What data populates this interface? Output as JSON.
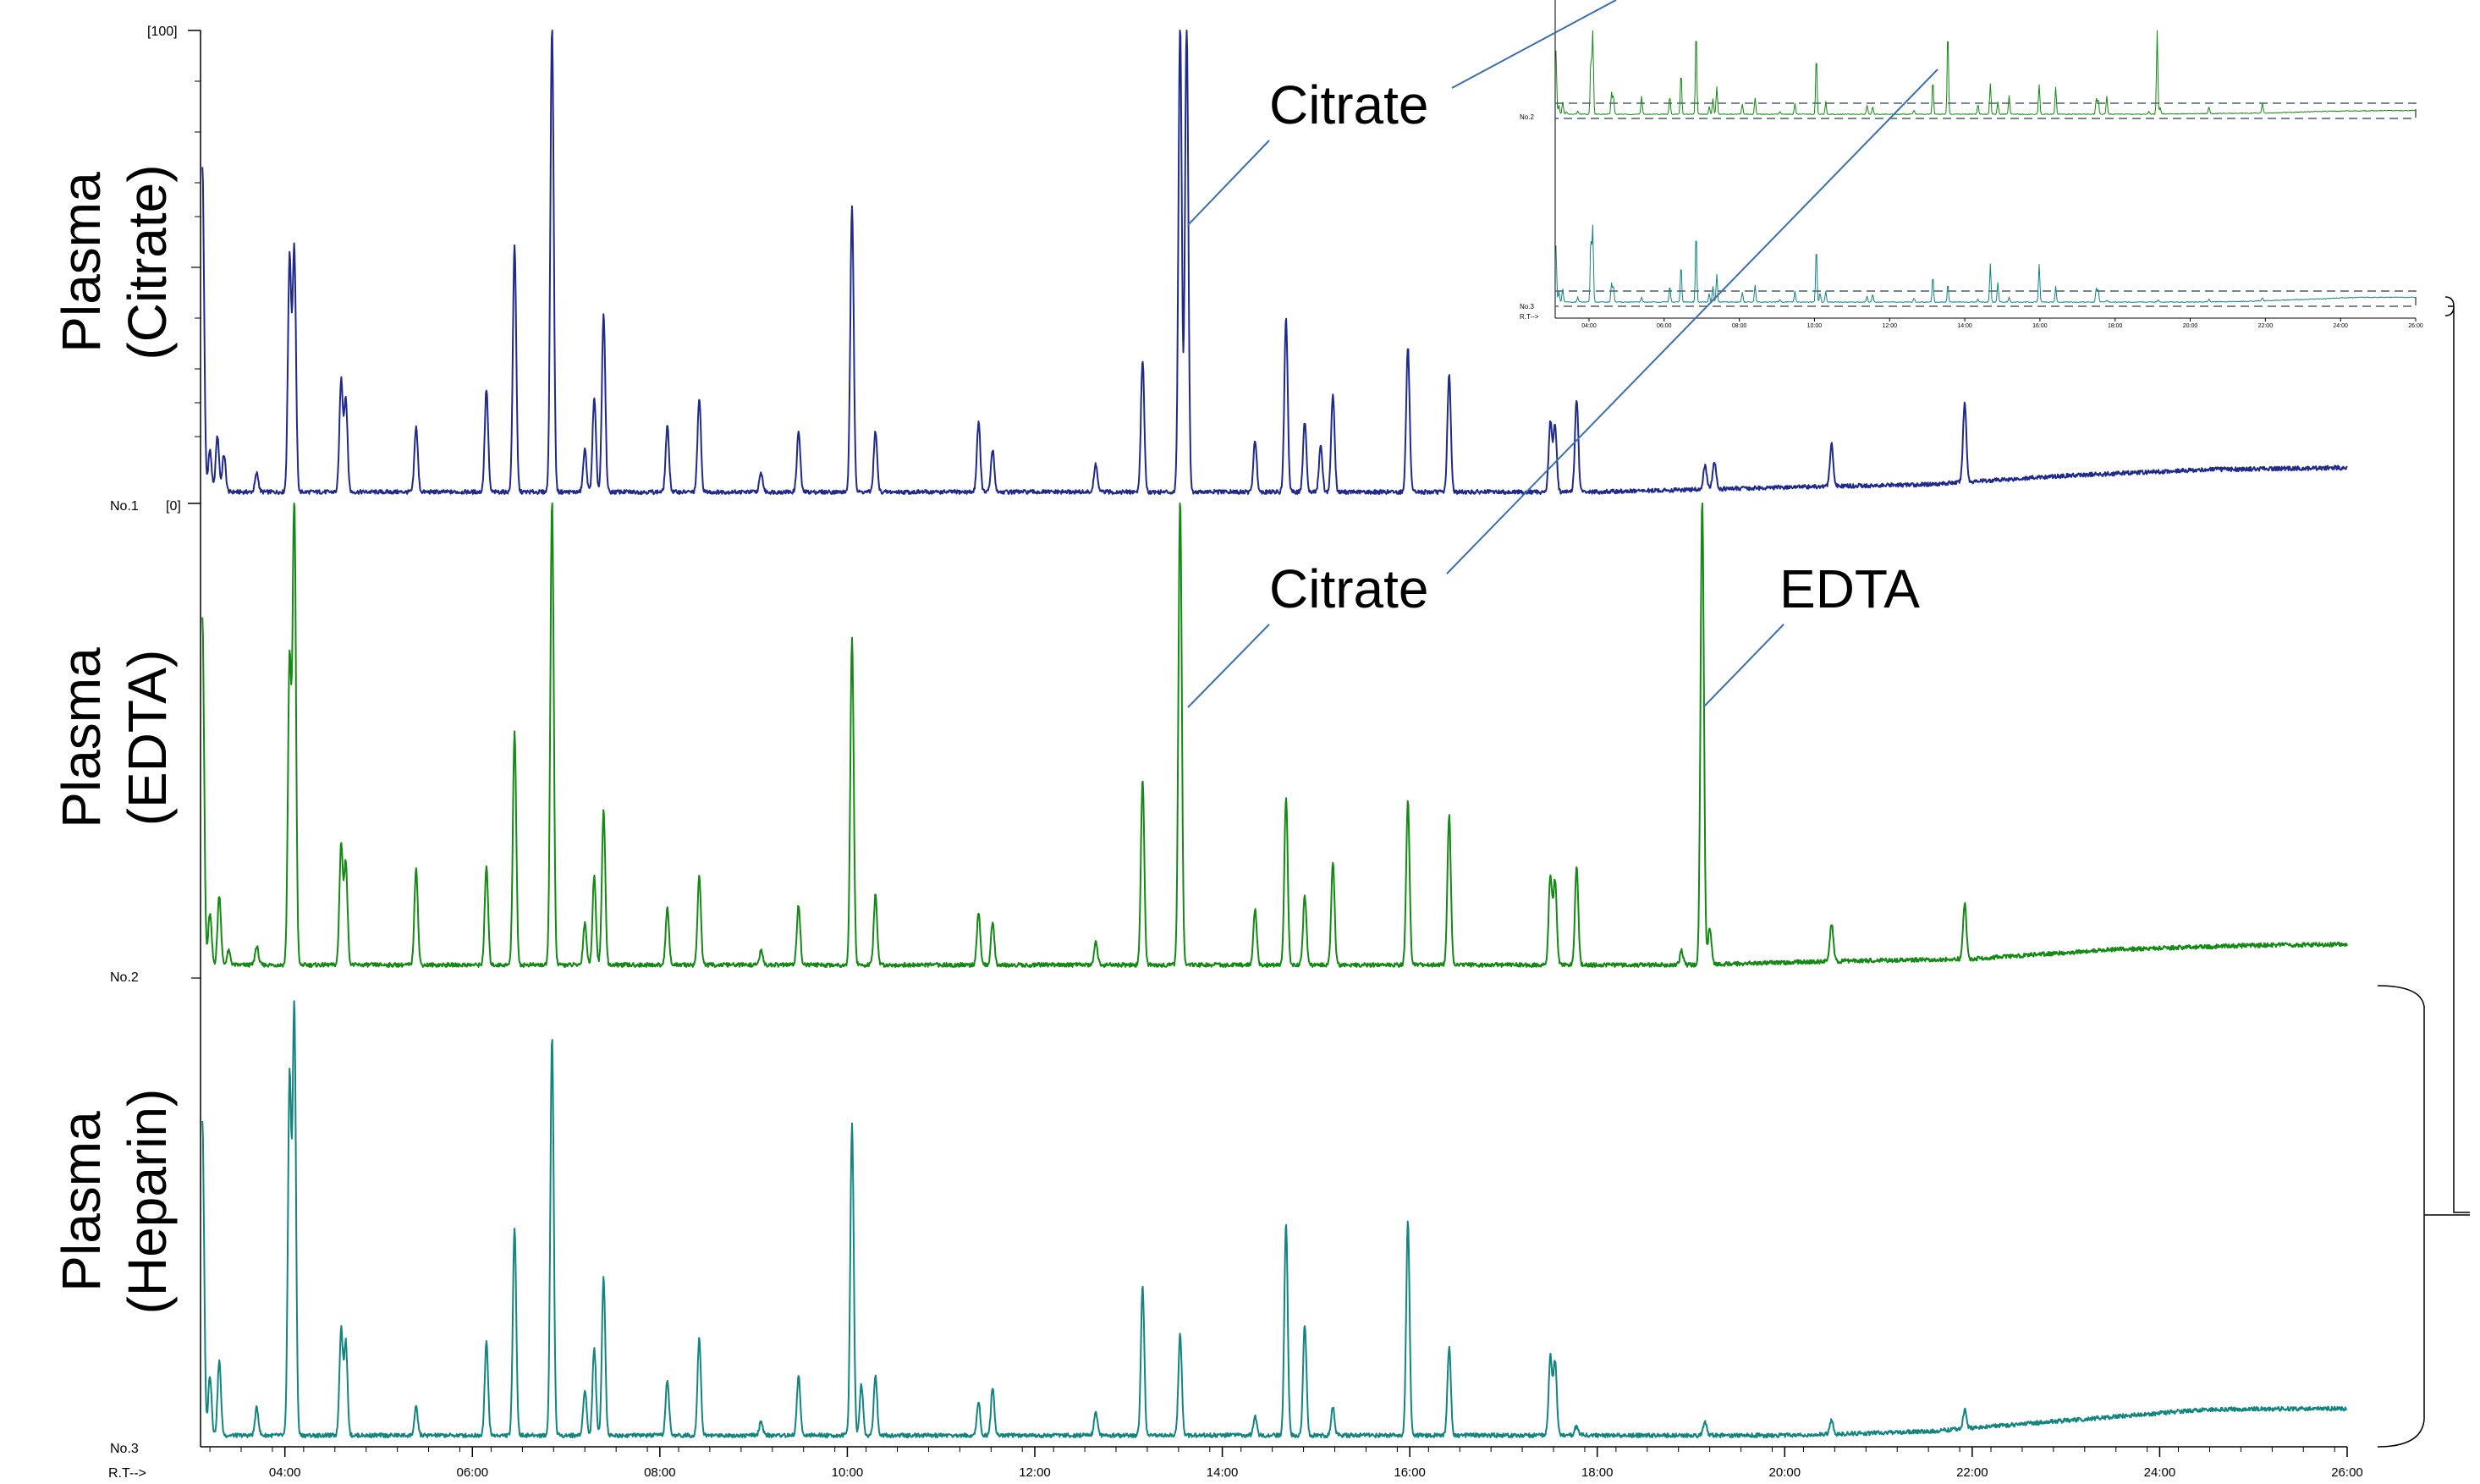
{
  "chart_data": {
    "type": "line",
    "x_label": "R.T-->",
    "x_ticks": [
      "04:00",
      "06:00",
      "08:00",
      "10:00",
      "12:00",
      "14:00",
      "16:00",
      "18:00",
      "20:00",
      "22:00",
      "24:00",
      "26:00"
    ],
    "x_range_min": [
      3.1,
      26.0
    ],
    "y_tick_top": "[100]",
    "y_tick_bottom": "[0]",
    "series": [
      {
        "id": "no1",
        "trace_label": "No.1",
        "title_line1": "Plasma",
        "title_line2": "(Citrate)",
        "color": "#1f2a8c",
        "baseline": 1.5,
        "drift": [
          [
            3.1,
            1.0
          ],
          [
            18,
            1.0
          ],
          [
            20,
            2.0
          ],
          [
            21.5,
            2.6
          ],
          [
            23,
            4.5
          ],
          [
            24.5,
            5.8
          ],
          [
            26,
            6.2
          ]
        ],
        "peaks": [
          [
            3.12,
            70
          ],
          [
            3.2,
            9
          ],
          [
            3.28,
            12
          ],
          [
            3.35,
            8
          ],
          [
            3.7,
            4
          ],
          [
            4.05,
            50
          ],
          [
            4.1,
            52
          ],
          [
            4.6,
            24
          ],
          [
            4.65,
            20
          ],
          [
            5.4,
            14
          ],
          [
            6.15,
            22
          ],
          [
            6.45,
            53
          ],
          [
            6.85,
            100
          ],
          [
            7.2,
            9
          ],
          [
            7.3,
            20
          ],
          [
            7.4,
            38
          ],
          [
            8.08,
            14
          ],
          [
            8.42,
            20
          ],
          [
            9.08,
            4
          ],
          [
            9.48,
            13
          ],
          [
            10.05,
            61
          ],
          [
            10.3,
            13
          ],
          [
            11.4,
            15
          ],
          [
            11.55,
            9
          ],
          [
            12.65,
            6
          ],
          [
            13.15,
            28
          ],
          [
            13.55,
            100
          ],
          [
            13.62,
            100
          ],
          [
            14.35,
            11
          ],
          [
            14.68,
            37
          ],
          [
            14.88,
            15
          ],
          [
            15.05,
            10
          ],
          [
            15.18,
            21
          ],
          [
            15.98,
            31
          ],
          [
            16.42,
            25
          ],
          [
            17.5,
            15
          ],
          [
            17.55,
            14
          ],
          [
            17.78,
            20
          ],
          [
            19.15,
            5
          ],
          [
            19.25,
            6
          ],
          [
            20.5,
            9
          ],
          [
            21.92,
            17
          ]
        ]
      },
      {
        "id": "no2",
        "trace_label": "No.2",
        "title_line1": "Plasma",
        "title_line2": "(EDTA)",
        "color": "#138a13",
        "baseline": 1.5,
        "drift": [
          [
            3.1,
            1.0
          ],
          [
            19,
            1.0
          ],
          [
            20.5,
            1.8
          ],
          [
            22,
            2.3
          ],
          [
            23.5,
            4.3
          ],
          [
            25,
            5.2
          ],
          [
            26,
            5.4
          ]
        ],
        "peaks": [
          [
            3.12,
            75
          ],
          [
            3.2,
            11
          ],
          [
            3.3,
            15
          ],
          [
            3.4,
            3
          ],
          [
            3.7,
            4
          ],
          [
            4.05,
            65
          ],
          [
            4.1,
            100
          ],
          [
            4.6,
            26
          ],
          [
            4.65,
            22
          ],
          [
            5.4,
            21
          ],
          [
            6.15,
            21
          ],
          [
            6.45,
            50
          ],
          [
            6.85,
            100
          ],
          [
            7.2,
            9
          ],
          [
            7.3,
            19
          ],
          [
            7.4,
            33
          ],
          [
            8.08,
            12
          ],
          [
            8.42,
            19
          ],
          [
            9.08,
            3
          ],
          [
            9.48,
            13
          ],
          [
            10.05,
            70
          ],
          [
            10.3,
            15
          ],
          [
            11.4,
            11
          ],
          [
            11.55,
            9
          ],
          [
            12.65,
            5
          ],
          [
            13.15,
            40
          ],
          [
            13.55,
            100
          ],
          [
            14.35,
            12
          ],
          [
            14.68,
            36
          ],
          [
            14.88,
            15
          ],
          [
            15.18,
            22
          ],
          [
            15.98,
            35
          ],
          [
            16.42,
            32
          ],
          [
            17.5,
            19
          ],
          [
            17.55,
            18
          ],
          [
            17.78,
            21
          ],
          [
            18.9,
            3
          ],
          [
            19.12,
            100
          ],
          [
            19.2,
            8
          ],
          [
            20.5,
            8
          ],
          [
            21.92,
            12
          ]
        ]
      },
      {
        "id": "no3",
        "trace_label": "No.3",
        "title_line1": "Plasma",
        "title_line2": "(Heparin)",
        "color": "#13857f",
        "baseline": 1.0,
        "drift": [
          [
            3.1,
            1.0
          ],
          [
            20,
            1.0
          ],
          [
            21.5,
            1.8
          ],
          [
            23,
            4.2
          ],
          [
            24.5,
            6.6
          ],
          [
            26,
            6.8
          ]
        ],
        "peaks": [
          [
            3.12,
            68
          ],
          [
            3.2,
            13
          ],
          [
            3.3,
            16
          ],
          [
            3.7,
            6
          ],
          [
            4.05,
            77
          ],
          [
            4.1,
            92
          ],
          [
            4.6,
            23
          ],
          [
            4.65,
            20
          ],
          [
            5.4,
            6
          ],
          [
            6.15,
            20
          ],
          [
            6.45,
            45
          ],
          [
            6.85,
            86
          ],
          [
            7.2,
            10
          ],
          [
            7.3,
            19
          ],
          [
            7.4,
            34
          ],
          [
            8.08,
            12
          ],
          [
            8.42,
            21
          ],
          [
            9.08,
            3
          ],
          [
            9.48,
            13
          ],
          [
            10.05,
            67
          ],
          [
            10.15,
            11
          ],
          [
            10.3,
            13
          ],
          [
            11.4,
            7
          ],
          [
            11.55,
            10
          ],
          [
            12.65,
            5
          ],
          [
            13.15,
            32
          ],
          [
            13.55,
            22
          ],
          [
            14.35,
            4
          ],
          [
            14.68,
            46
          ],
          [
            14.88,
            24
          ],
          [
            15.18,
            6
          ],
          [
            15.98,
            46
          ],
          [
            16.42,
            19
          ],
          [
            17.5,
            17
          ],
          [
            17.55,
            16
          ],
          [
            17.78,
            2
          ],
          [
            19.15,
            3
          ],
          [
            20.5,
            3
          ],
          [
            21.92,
            4
          ]
        ]
      }
    ],
    "annotations": [
      {
        "text": "Citrate",
        "series": "no1"
      },
      {
        "text": "Citrate",
        "series": "no2"
      },
      {
        "text": "EDTA",
        "series": "no2"
      }
    ],
    "inset": {
      "x_label": "R.T-->",
      "trace_labels": [
        "No.2",
        "No.3"
      ],
      "x_ticks": [
        "04:00",
        "06:00",
        "08:00",
        "10:00",
        "12:00",
        "14:00",
        "16:00",
        "18:00",
        "20:00",
        "22:00",
        "24:00",
        "26:00"
      ]
    }
  }
}
